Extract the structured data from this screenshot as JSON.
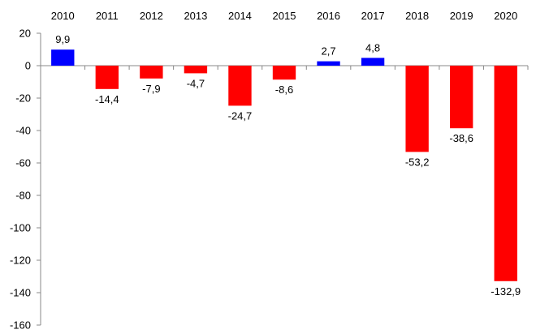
{
  "chart_data": {
    "type": "bar",
    "title": "",
    "xlabel": "",
    "ylabel": "",
    "categories": [
      "2010",
      "2011",
      "2012",
      "2013",
      "2014",
      "2015",
      "2016",
      "2017",
      "2018",
      "2019",
      "2020"
    ],
    "values": [
      9.9,
      -14.4,
      -7.9,
      -4.7,
      -24.7,
      -8.6,
      2.7,
      4.8,
      -53.2,
      -38.6,
      -132.9
    ],
    "data_labels": [
      "9,9",
      "-14,4",
      "-7,9",
      "-4,7",
      "-24,7",
      "-8,6",
      "2,7",
      "4,8",
      "-53,2",
      "-38,6",
      "-132,9"
    ],
    "ylim": [
      -160,
      20
    ],
    "yticks": [
      20,
      0,
      -20,
      -40,
      -60,
      -80,
      -100,
      -120,
      -140,
      -160
    ],
    "ytick_labels": [
      "20",
      "0",
      "-20",
      "-40",
      "-60",
      "-80",
      "-100",
      "-120",
      "-140",
      "-160"
    ],
    "category_labels_position": "top",
    "grid": false,
    "legend": false,
    "colors": {
      "positive": "#0000ff",
      "negative": "#ff0000",
      "axis": "#888888",
      "text": "#000000"
    }
  }
}
